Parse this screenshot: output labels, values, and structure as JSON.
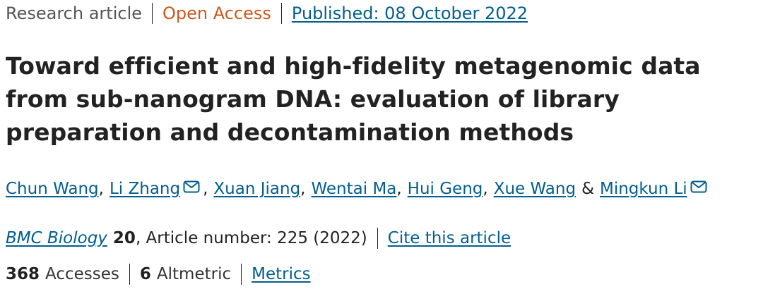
{
  "header": {
    "article_type": "Research article",
    "access": "Open Access",
    "published": "Published: 08 October 2022"
  },
  "title": "Toward efficient and high-fidelity metagenomic data from sub-nanogram DNA: evaluation of library preparation and decontamination methods",
  "authors": {
    "list": [
      "Chun Wang",
      "Li Zhang",
      "Xuan Jiang",
      "Wentai Ma",
      "Hui Geng",
      "Xue Wang",
      "Mingkun Li"
    ],
    "comma": ",",
    "ampersand": "&",
    "mail_icon": "envelope-icon"
  },
  "citation": {
    "journal": "BMC Biology",
    "volume": "20",
    "article_number": ", Article number: 225 (2022)",
    "cite_label": "Cite this article"
  },
  "metrics": {
    "accesses_count": "368",
    "accesses_label": "Accesses",
    "altmetric_count": "6",
    "altmetric_label": "Altmetric",
    "metrics_label": "Metrics"
  },
  "colors": {
    "link": "#025e8d",
    "open_access": "#c9591f",
    "text": "#222222"
  }
}
